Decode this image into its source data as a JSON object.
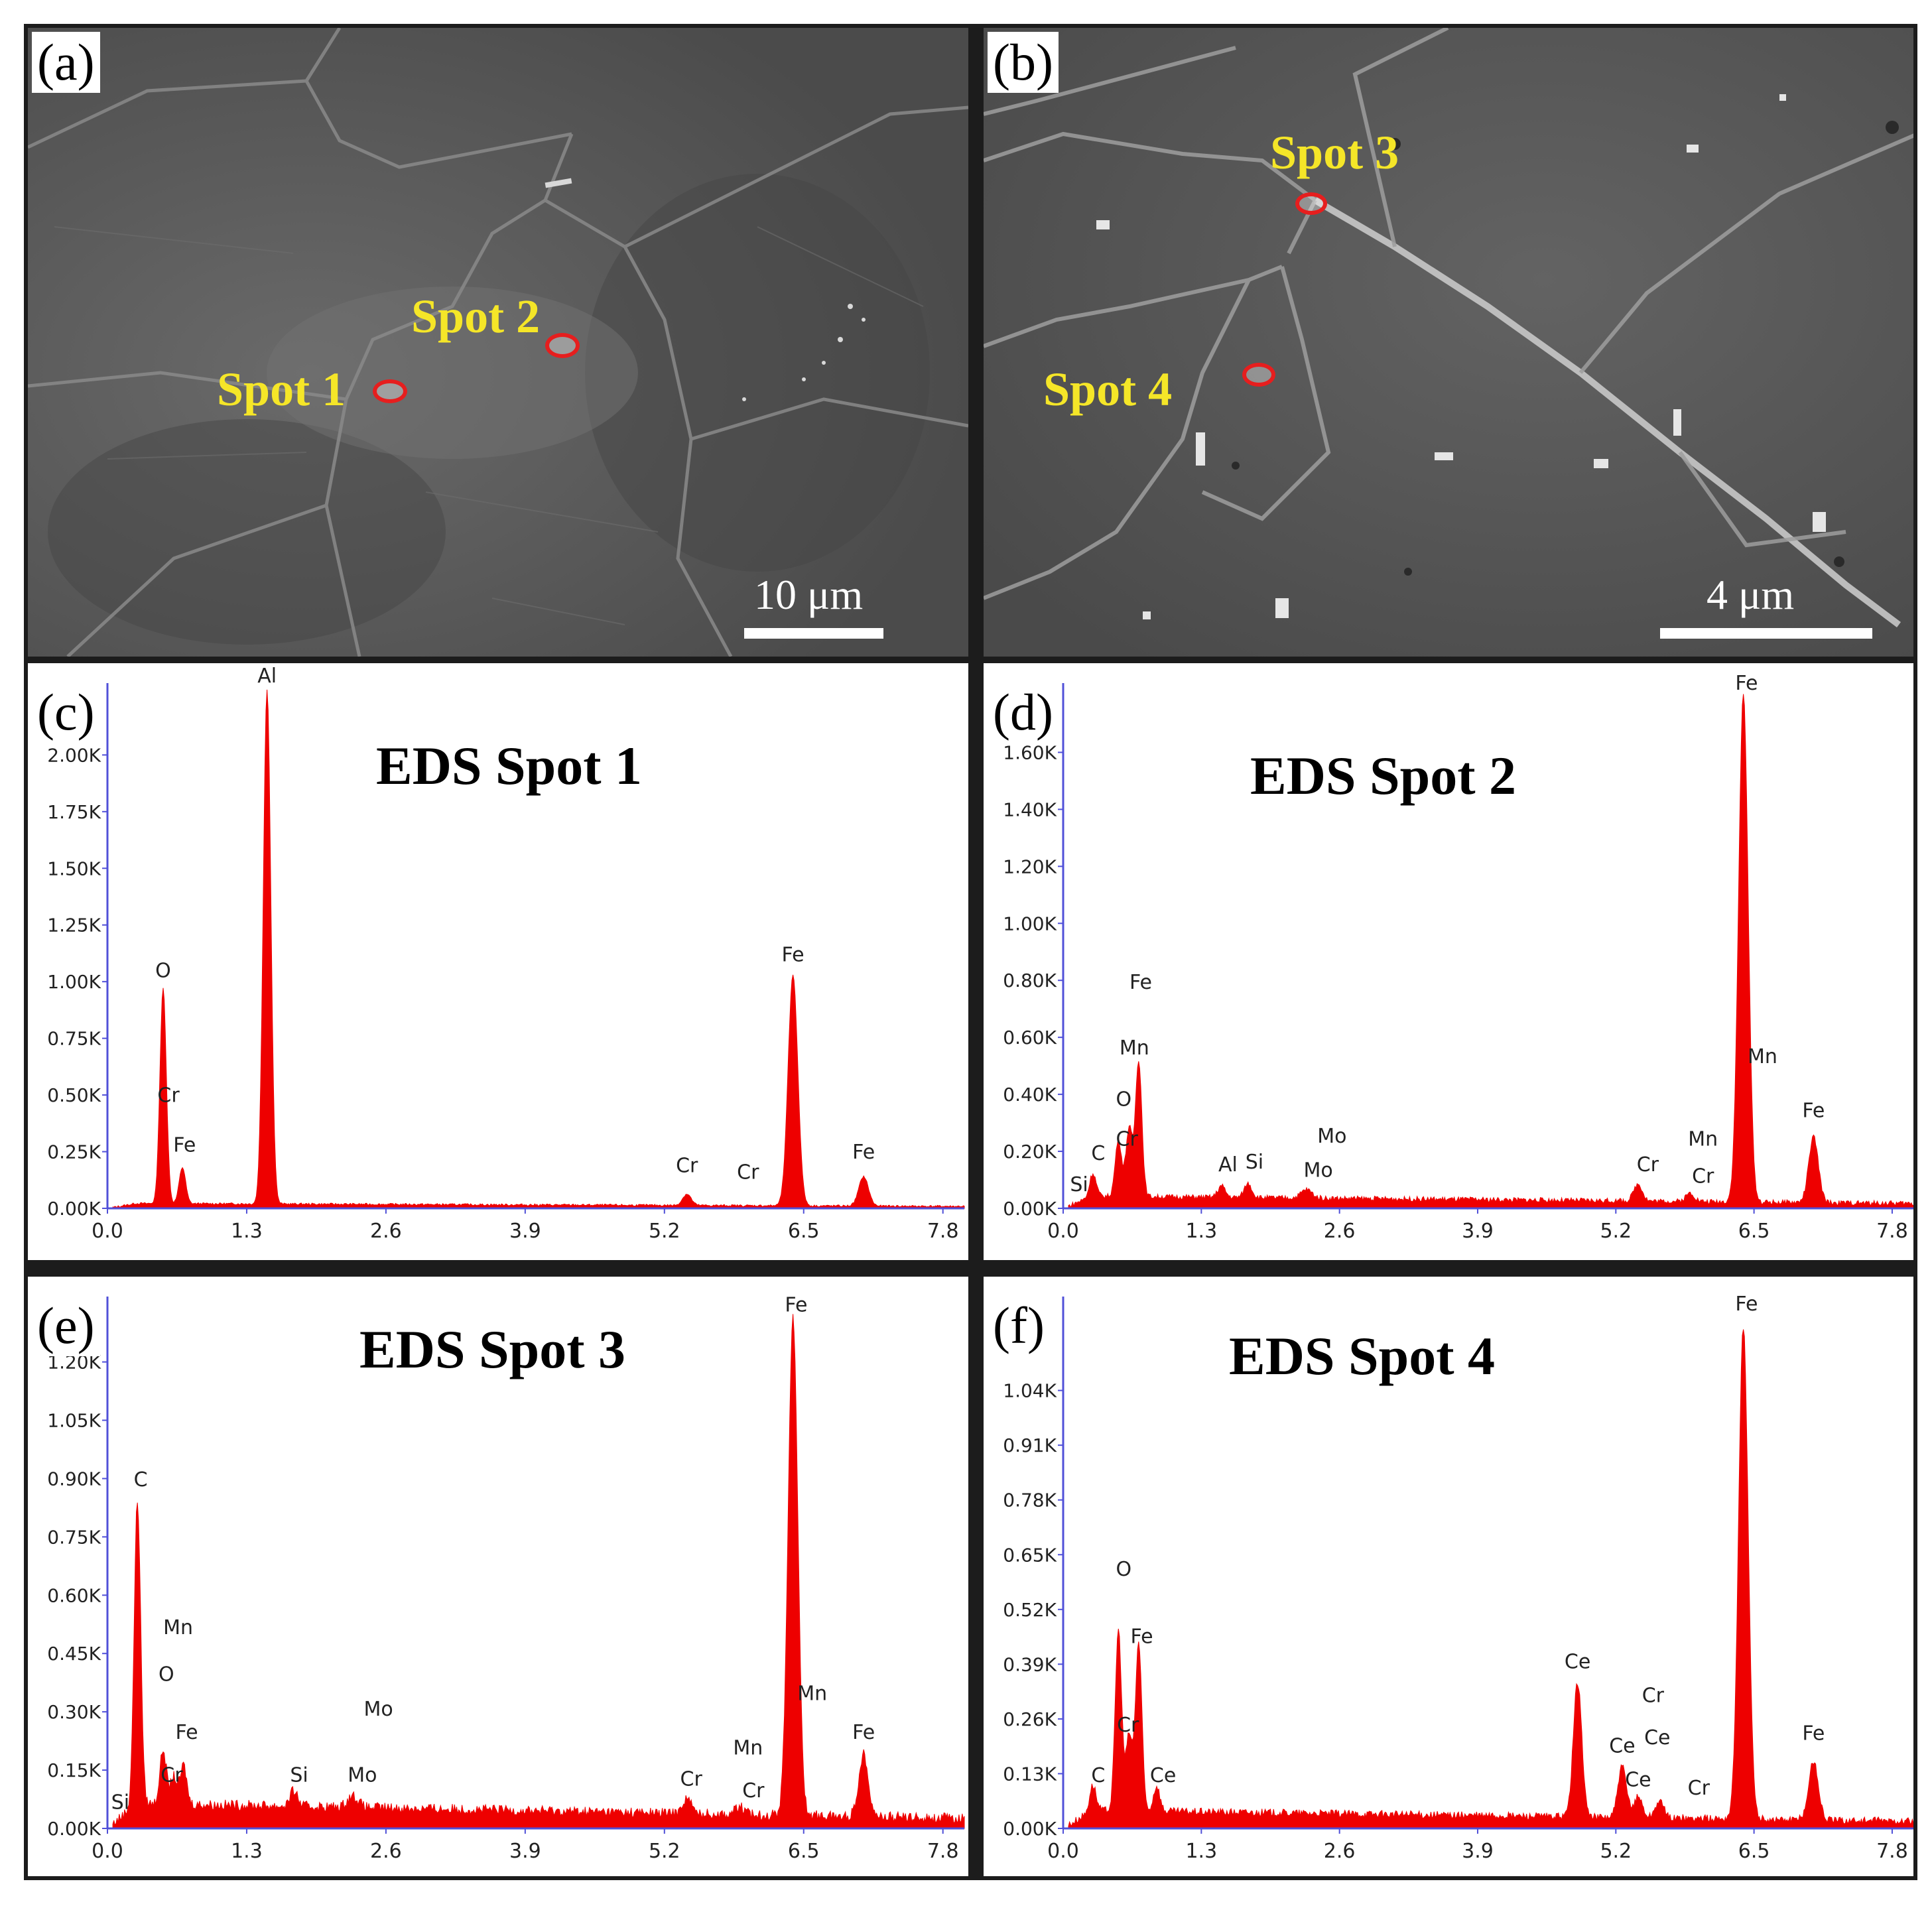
{
  "panels": {
    "a": {
      "letter": "(a)",
      "scale": "10 μm",
      "spots": [
        "Spot 1",
        "Spot 2"
      ]
    },
    "b": {
      "letter": "(b)",
      "scale": "4 μm",
      "spots": [
        "Spot 3",
        "Spot 4"
      ]
    },
    "c": {
      "letter": "(c)"
    },
    "d": {
      "letter": "(d)"
    },
    "e": {
      "letter": "(e)"
    },
    "f": {
      "letter": "(f)"
    }
  },
  "colors": {
    "spectrum": "#ee0000",
    "axis": "#5050d8",
    "spot_label": "#f5e628",
    "spot_ring": "#e61e1e"
  },
  "chart_data": [
    {
      "id": "c",
      "type": "area",
      "title": "EDS Spot 1",
      "xlim": [
        0,
        8.0
      ],
      "ylim": [
        0,
        2.2
      ],
      "x_ticks": [
        "0.0",
        "1.3",
        "2.6",
        "3.9",
        "5.2",
        "6.5",
        "7.8"
      ],
      "y_ticks": [
        "0.00K",
        "0.25K",
        "0.50K",
        "0.75K",
        "1.00K",
        "1.25K",
        "1.50K",
        "1.75K",
        "2.00K"
      ],
      "y_tick_values": [
        0,
        0.25,
        0.5,
        0.75,
        1.0,
        1.25,
        1.5,
        1.75,
        2.0
      ],
      "baseline": 0.02,
      "peaks": [
        {
          "x": 0.52,
          "h": 0.95,
          "w": 0.03
        },
        {
          "x": 0.7,
          "h": 0.16,
          "w": 0.03
        },
        {
          "x": 1.49,
          "h": 2.27,
          "w": 0.035
        },
        {
          "x": 5.41,
          "h": 0.05,
          "w": 0.04
        },
        {
          "x": 6.4,
          "h": 1.02,
          "w": 0.045
        },
        {
          "x": 7.06,
          "h": 0.13,
          "w": 0.045
        }
      ],
      "labels": [
        {
          "text": "O",
          "x": 0.52,
          "y": 1.02
        },
        {
          "text": "Cr",
          "x": 0.57,
          "y": 0.47
        },
        {
          "text": "Fe",
          "x": 0.72,
          "y": 0.25
        },
        {
          "text": "Al",
          "x": 1.49,
          "y": 2.32
        },
        {
          "text": "Cr",
          "x": 5.41,
          "y": 0.16
        },
        {
          "text": "Cr",
          "x": 5.98,
          "y": 0.13
        },
        {
          "text": "Fe",
          "x": 6.4,
          "y": 1.09
        },
        {
          "text": "Fe",
          "x": 7.06,
          "y": 0.22
        }
      ]
    },
    {
      "id": "d",
      "type": "area",
      "title": "EDS Spot 2",
      "xlim": [
        0,
        8.0
      ],
      "ylim": [
        0,
        1.75
      ],
      "x_ticks": [
        "0.0",
        "1.3",
        "2.6",
        "3.9",
        "5.2",
        "6.5",
        "7.8"
      ],
      "y_ticks": [
        "0.00K",
        "0.20K",
        "0.40K",
        "0.60K",
        "0.80K",
        "1.00K",
        "1.20K",
        "1.40K",
        "1.60K"
      ],
      "y_tick_values": [
        0,
        0.2,
        0.4,
        0.6,
        0.8,
        1.0,
        1.2,
        1.4,
        1.6
      ],
      "baseline": 0.04,
      "peaks": [
        {
          "x": 0.28,
          "h": 0.08,
          "w": 0.03
        },
        {
          "x": 0.52,
          "h": 0.2,
          "w": 0.03
        },
        {
          "x": 0.62,
          "h": 0.24,
          "w": 0.03
        },
        {
          "x": 0.71,
          "h": 0.48,
          "w": 0.03
        },
        {
          "x": 1.49,
          "h": 0.04,
          "w": 0.035
        },
        {
          "x": 1.74,
          "h": 0.05,
          "w": 0.035
        },
        {
          "x": 2.29,
          "h": 0.03,
          "w": 0.05
        },
        {
          "x": 5.41,
          "h": 0.06,
          "w": 0.04
        },
        {
          "x": 5.9,
          "h": 0.03,
          "w": 0.04
        },
        {
          "x": 6.4,
          "h": 1.78,
          "w": 0.045
        },
        {
          "x": 7.06,
          "h": 0.23,
          "w": 0.045
        }
      ],
      "labels": [
        {
          "text": "Si",
          "x": 0.15,
          "y": 0.06
        },
        {
          "text": "C",
          "x": 0.33,
          "y": 0.17
        },
        {
          "text": "O",
          "x": 0.57,
          "y": 0.36
        },
        {
          "text": "Cr",
          "x": 0.6,
          "y": 0.22
        },
        {
          "text": "Fe",
          "x": 0.73,
          "y": 0.77
        },
        {
          "text": "Mn",
          "x": 0.67,
          "y": 0.54
        },
        {
          "text": "Al",
          "x": 1.55,
          "y": 0.13
        },
        {
          "text": "Si",
          "x": 1.8,
          "y": 0.14
        },
        {
          "text": "Mo",
          "x": 2.53,
          "y": 0.23
        },
        {
          "text": "Mo",
          "x": 2.4,
          "y": 0.11
        },
        {
          "text": "Cr",
          "x": 5.5,
          "y": 0.13
        },
        {
          "text": "Mn",
          "x": 6.02,
          "y": 0.22
        },
        {
          "text": "Cr",
          "x": 6.02,
          "y": 0.09
        },
        {
          "text": "Fe",
          "x": 6.43,
          "y": 1.82
        },
        {
          "text": "Mn",
          "x": 6.58,
          "y": 0.51
        },
        {
          "text": "Fe",
          "x": 7.06,
          "y": 0.32
        }
      ]
    },
    {
      "id": "e",
      "type": "area",
      "title": "EDS Spot 3",
      "xlim": [
        0,
        8.0
      ],
      "ylim": [
        0,
        1.3
      ],
      "x_ticks": [
        "0.0",
        "1.3",
        "2.6",
        "3.9",
        "5.2",
        "6.5",
        "7.8"
      ],
      "y_ticks": [
        "0.00K",
        "0.15K",
        "0.30K",
        "0.45K",
        "0.60K",
        "0.75K",
        "0.90K",
        "1.05K",
        "1.20K"
      ],
      "y_tick_values": [
        0,
        0.15,
        0.3,
        0.45,
        0.6,
        0.75,
        0.9,
        1.05,
        1.2
      ],
      "baseline": 0.06,
      "peaks": [
        {
          "x": 0.28,
          "h": 0.78,
          "w": 0.03
        },
        {
          "x": 0.52,
          "h": 0.14,
          "w": 0.03
        },
        {
          "x": 0.62,
          "h": 0.07,
          "w": 0.03
        },
        {
          "x": 0.71,
          "h": 0.1,
          "w": 0.03
        },
        {
          "x": 1.74,
          "h": 0.04,
          "w": 0.035
        },
        {
          "x": 2.29,
          "h": 0.03,
          "w": 0.05
        },
        {
          "x": 5.41,
          "h": 0.04,
          "w": 0.04
        },
        {
          "x": 5.9,
          "h": 0.02,
          "w": 0.04
        },
        {
          "x": 6.4,
          "h": 1.28,
          "w": 0.045
        },
        {
          "x": 7.06,
          "h": 0.16,
          "w": 0.045
        }
      ],
      "labels": [
        {
          "text": "Si",
          "x": 0.12,
          "y": 0.05
        },
        {
          "text": "C",
          "x": 0.31,
          "y": 0.88
        },
        {
          "text": "Mn",
          "x": 0.66,
          "y": 0.5
        },
        {
          "text": "O",
          "x": 0.55,
          "y": 0.38
        },
        {
          "text": "Fe",
          "x": 0.74,
          "y": 0.23
        },
        {
          "text": "Cr",
          "x": 0.6,
          "y": 0.12
        },
        {
          "text": "Si",
          "x": 1.79,
          "y": 0.12
        },
        {
          "text": "Mo",
          "x": 2.53,
          "y": 0.29
        },
        {
          "text": "Mo",
          "x": 2.38,
          "y": 0.12
        },
        {
          "text": "Cr",
          "x": 5.45,
          "y": 0.11
        },
        {
          "text": "Mn",
          "x": 5.98,
          "y": 0.19
        },
        {
          "text": "Cr",
          "x": 6.03,
          "y": 0.08
        },
        {
          "text": "Fe",
          "x": 6.43,
          "y": 1.33
        },
        {
          "text": "Mn",
          "x": 6.58,
          "y": 0.33
        },
        {
          "text": "Fe",
          "x": 7.06,
          "y": 0.23
        }
      ]
    },
    {
      "id": "f",
      "type": "area",
      "title": "EDS Spot 4",
      "xlim": [
        0,
        8.0
      ],
      "ylim": [
        0,
        1.2
      ],
      "x_ticks": [
        "0.0",
        "1.3",
        "2.6",
        "3.9",
        "5.2",
        "6.5",
        "7.8"
      ],
      "y_ticks": [
        "0.00K",
        "0.13K",
        "0.26K",
        "0.39K",
        "0.52K",
        "0.65K",
        "0.78K",
        "0.91K",
        "1.04K"
      ],
      "y_tick_values": [
        0,
        0.13,
        0.26,
        0.39,
        0.52,
        0.65,
        0.78,
        0.91,
        1.04
      ],
      "baseline": 0.04,
      "peaks": [
        {
          "x": 0.28,
          "h": 0.06,
          "w": 0.03
        },
        {
          "x": 0.52,
          "h": 0.43,
          "w": 0.03
        },
        {
          "x": 0.62,
          "h": 0.18,
          "w": 0.03
        },
        {
          "x": 0.71,
          "h": 0.4,
          "w": 0.03
        },
        {
          "x": 0.88,
          "h": 0.06,
          "w": 0.03
        },
        {
          "x": 4.84,
          "h": 0.32,
          "w": 0.04
        },
        {
          "x": 5.26,
          "h": 0.12,
          "w": 0.04
        },
        {
          "x": 5.41,
          "h": 0.05,
          "w": 0.04
        },
        {
          "x": 5.61,
          "h": 0.04,
          "w": 0.04
        },
        {
          "x": 6.4,
          "h": 1.17,
          "w": 0.045
        },
        {
          "x": 7.06,
          "h": 0.14,
          "w": 0.045
        }
      ],
      "labels": [
        {
          "text": "C",
          "x": 0.33,
          "y": 0.11
        },
        {
          "text": "O",
          "x": 0.57,
          "y": 0.6
        },
        {
          "text": "Fe",
          "x": 0.74,
          "y": 0.44
        },
        {
          "text": "Cr",
          "x": 0.61,
          "y": 0.23
        },
        {
          "text": "Ce",
          "x": 0.94,
          "y": 0.11
        },
        {
          "text": "Ce",
          "x": 4.84,
          "y": 0.38
        },
        {
          "text": "Cr",
          "x": 5.55,
          "y": 0.3
        },
        {
          "text": "Ce",
          "x": 5.26,
          "y": 0.18
        },
        {
          "text": "Ce",
          "x": 5.59,
          "y": 0.2
        },
        {
          "text": "Ce",
          "x": 5.41,
          "y": 0.1
        },
        {
          "text": "Cr",
          "x": 5.98,
          "y": 0.08
        },
        {
          "text": "Fe",
          "x": 6.43,
          "y": 1.23
        },
        {
          "text": "Fe",
          "x": 7.06,
          "y": 0.21
        }
      ]
    }
  ]
}
